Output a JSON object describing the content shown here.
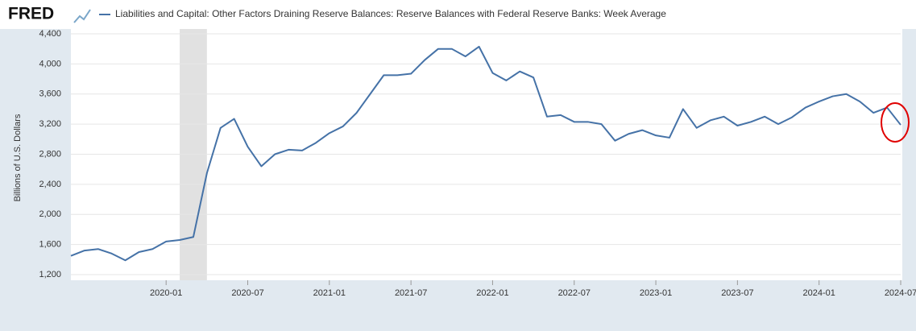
{
  "header": {
    "logo": "FRED"
  },
  "chart_data": {
    "type": "line",
    "title": "Liabilities and Capital: Other Factors Draining Reserve Balances: Reserve Balances with Federal Reserve Banks: Week Average",
    "y_label": "Billions of U.S. Dollars",
    "x": [
      "2019-06",
      "2019-07",
      "2019-08",
      "2019-09",
      "2019-10",
      "2019-11",
      "2019-12",
      "2020-01",
      "2020-02",
      "2020-03",
      "2020-04",
      "2020-05",
      "2020-06",
      "2020-07",
      "2020-08",
      "2020-09",
      "2020-10",
      "2020-11",
      "2020-12",
      "2021-01",
      "2021-02",
      "2021-03",
      "2021-04",
      "2021-05",
      "2021-06",
      "2021-07",
      "2021-08",
      "2021-09",
      "2021-10",
      "2021-11",
      "2021-12",
      "2022-01",
      "2022-02",
      "2022-03",
      "2022-04",
      "2022-05",
      "2022-06",
      "2022-07",
      "2022-08",
      "2022-09",
      "2022-10",
      "2022-11",
      "2022-12",
      "2023-01",
      "2023-02",
      "2023-03",
      "2023-04",
      "2023-05",
      "2023-06",
      "2023-07",
      "2023-08",
      "2023-09",
      "2023-10",
      "2023-11",
      "2023-12",
      "2024-01",
      "2024-02",
      "2024-03",
      "2024-04",
      "2024-05",
      "2024-06",
      "2024-07"
    ],
    "series": [
      {
        "name": "Liabilities and Capital: Other Factors Draining Reserve Balances: Reserve Balances with Federal Reserve Banks: Week Average",
        "color": "#4572a7",
        "values": [
          1450,
          1520,
          1540,
          1480,
          1390,
          1500,
          1540,
          1640,
          1660,
          1700,
          2550,
          3150,
          3270,
          2900,
          2640,
          2800,
          2860,
          2850,
          2950,
          3080,
          3170,
          3350,
          3600,
          3850,
          3850,
          3870,
          4050,
          4200,
          4200,
          4100,
          4230,
          3880,
          3780,
          3900,
          3820,
          3300,
          3320,
          3230,
          3230,
          3200,
          2980,
          3070,
          3120,
          3050,
          3020,
          3400,
          3150,
          3250,
          3300,
          3180,
          3230,
          3300,
          3200,
          3290,
          3420,
          3500,
          3570,
          3600,
          3500,
          3350,
          3420,
          3190
        ]
      }
    ],
    "xlim": [
      "2019-06",
      "2024-07"
    ],
    "xticks": [
      "2020-01",
      "2020-07",
      "2021-01",
      "2021-07",
      "2022-01",
      "2022-07",
      "2023-01",
      "2023-07",
      "2024-01",
      "2024-07"
    ],
    "ylim": [
      1200,
      4400
    ],
    "yticks": [
      {
        "value": 1200,
        "label": "1,200"
      },
      {
        "value": 1600,
        "label": "1,600"
      },
      {
        "value": 2000,
        "label": "2,000"
      },
      {
        "value": 2400,
        "label": "2,400"
      },
      {
        "value": 2800,
        "label": "2,800"
      },
      {
        "value": 3200,
        "label": "3,200"
      },
      {
        "value": 3600,
        "label": "3,600"
      },
      {
        "value": 4000,
        "label": "4,000"
      },
      {
        "value": 4400,
        "label": "4,400"
      }
    ],
    "grid": true,
    "recession": [
      "2020-02",
      "2020-04"
    ],
    "recession_color": "#e1e1e1"
  }
}
